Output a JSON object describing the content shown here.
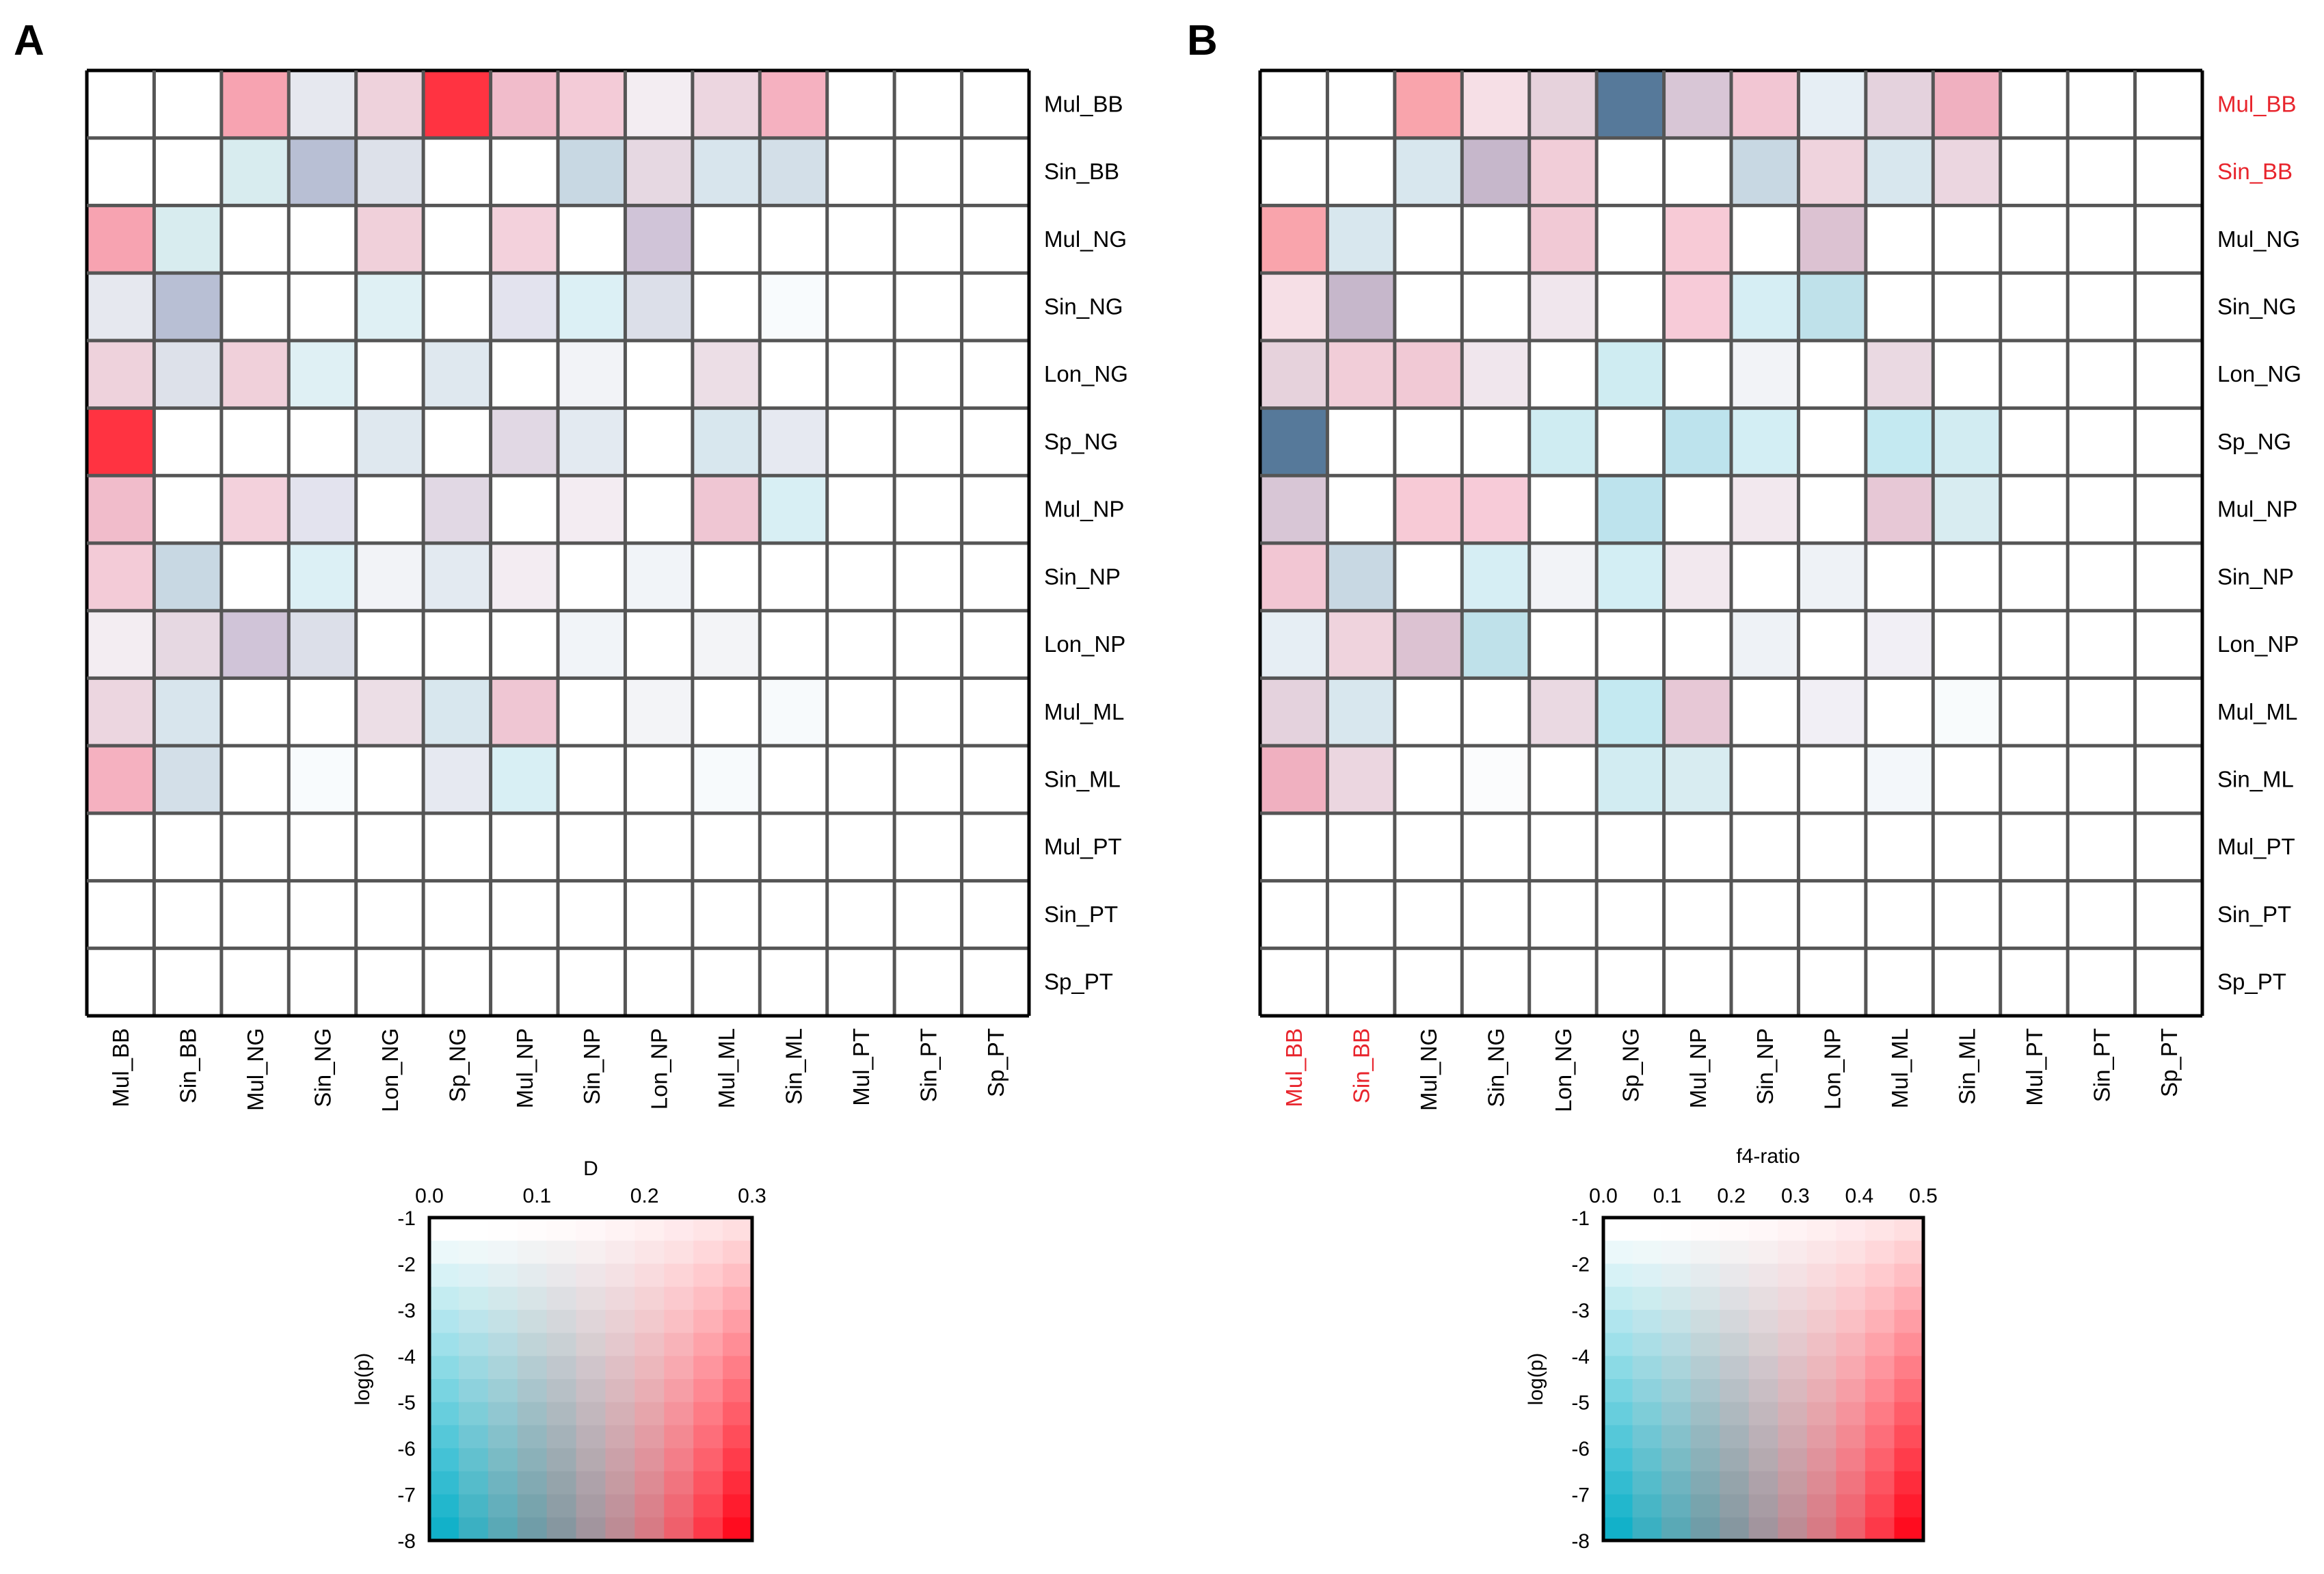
{
  "chart_data": [
    {
      "type": "heatmap",
      "panel_label": "A",
      "row_labels": [
        "Mul_BB",
        "Sin_BB",
        "Mul_NG",
        "Sin_NG",
        "Lon_NG",
        "Sp_NG",
        "Mul_NP",
        "Sin_NP",
        "Lon_NP",
        "Mul_ML",
        "Sin_ML",
        "Mul_PT",
        "Sin_PT",
        "Sp_PT"
      ],
      "col_labels": [
        "Mul_BB",
        "Sin_BB",
        "Mul_NG",
        "Sin_NG",
        "Lon_NG",
        "Sp_NG",
        "Mul_NP",
        "Sin_NP",
        "Lon_NP",
        "Mul_ML",
        "Sin_ML",
        "Mul_PT",
        "Sin_PT",
        "Sp_PT"
      ],
      "highlighted_labels": [],
      "cell_colors": [
        [
          "#ffffff",
          "#ffffff",
          "#f7a3b1",
          "#e6e8ef",
          "#eed2dc",
          "#ff3341",
          "#f1bccb",
          "#f3cbd7",
          "#f3edf2",
          "#ecd6e0",
          "#f5b1c0",
          "#ffffff",
          "#ffffff",
          "#ffffff"
        ],
        [
          "#ffffff",
          "#ffffff",
          "#d8ecef",
          "#b8bfd4",
          "#dde1ea",
          "#ffffff",
          "#ffffff",
          "#c8d8e3",
          "#e6d8e2",
          "#d8e5ed",
          "#d3dfe8",
          "#ffffff",
          "#ffffff",
          "#ffffff"
        ],
        [
          "#f7a3b1",
          "#d8ecef",
          "#ffffff",
          "#ffffff",
          "#f0d0da",
          "#ffffff",
          "#f3d1dc",
          "#ffffff",
          "#d0c4d8",
          "#ffffff",
          "#ffffff",
          "#ffffff",
          "#ffffff",
          "#ffffff"
        ],
        [
          "#e6e8ef",
          "#b8bfd4",
          "#ffffff",
          "#ffffff",
          "#dff0f4",
          "#ffffff",
          "#e3e3ee",
          "#dcf0f5",
          "#dcdfe9",
          "#ffffff",
          "#f8fbfd",
          "#ffffff",
          "#ffffff",
          "#ffffff"
        ],
        [
          "#eed2dc",
          "#dde1ea",
          "#f0d0da",
          "#dff0f4",
          "#ffffff",
          "#dfe8ef",
          "#ffffff",
          "#f2f3f7",
          "#ffffff",
          "#ecdee6",
          "#ffffff",
          "#ffffff",
          "#ffffff",
          "#ffffff"
        ],
        [
          "#ff3341",
          "#ffffff",
          "#ffffff",
          "#ffffff",
          "#dfe8ef",
          "#ffffff",
          "#e1d8e4",
          "#e3eaf1",
          "#ffffff",
          "#d8e7ee",
          "#e6e9f1",
          "#ffffff",
          "#ffffff",
          "#ffffff"
        ],
        [
          "#f1bccb",
          "#ffffff",
          "#f3d1dc",
          "#e3e3ee",
          "#ffffff",
          "#e1d8e4",
          "#ffffff",
          "#f3ecf2",
          "#ffffff",
          "#efc6d3",
          "#d8eff4",
          "#ffffff",
          "#ffffff",
          "#ffffff"
        ],
        [
          "#f3cbd7",
          "#c8d8e3",
          "#ffffff",
          "#dcf0f5",
          "#f2f3f7",
          "#e3eaf1",
          "#f3ecf2",
          "#ffffff",
          "#f1f4f8",
          "#ffffff",
          "#ffffff",
          "#ffffff",
          "#ffffff",
          "#ffffff"
        ],
        [
          "#f3edf2",
          "#e6d8e2",
          "#d0c4d8",
          "#dcdfe9",
          "#ffffff",
          "#ffffff",
          "#ffffff",
          "#f1f4f8",
          "#ffffff",
          "#f3f4f7",
          "#ffffff",
          "#ffffff",
          "#ffffff",
          "#ffffff"
        ],
        [
          "#ecd6e0",
          "#d8e5ed",
          "#ffffff",
          "#ffffff",
          "#ecdee6",
          "#d8e7ee",
          "#efc6d3",
          "#ffffff",
          "#f3f4f7",
          "#ffffff",
          "#f7fafc",
          "#ffffff",
          "#ffffff",
          "#ffffff"
        ],
        [
          "#f5b1c0",
          "#d3dfe8",
          "#ffffff",
          "#f8fbfd",
          "#ffffff",
          "#e6e9f1",
          "#d8eff4",
          "#ffffff",
          "#ffffff",
          "#f7fafc",
          "#ffffff",
          "#ffffff",
          "#ffffff",
          "#ffffff"
        ],
        [
          "#ffffff",
          "#ffffff",
          "#ffffff",
          "#ffffff",
          "#ffffff",
          "#ffffff",
          "#ffffff",
          "#ffffff",
          "#ffffff",
          "#ffffff",
          "#ffffff",
          "#ffffff",
          "#ffffff",
          "#ffffff"
        ],
        [
          "#ffffff",
          "#ffffff",
          "#ffffff",
          "#ffffff",
          "#ffffff",
          "#ffffff",
          "#ffffff",
          "#ffffff",
          "#ffffff",
          "#ffffff",
          "#ffffff",
          "#ffffff",
          "#ffffff",
          "#ffffff"
        ],
        [
          "#ffffff",
          "#ffffff",
          "#ffffff",
          "#ffffff",
          "#ffffff",
          "#ffffff",
          "#ffffff",
          "#ffffff",
          "#ffffff",
          "#ffffff",
          "#ffffff",
          "#ffffff",
          "#ffffff",
          "#ffffff"
        ]
      ],
      "legend": {
        "title": "D",
        "x_label": "D",
        "x_ticks": [
          "0.0",
          "0.1",
          "0.2",
          "0.3"
        ],
        "x_range": [
          0,
          0.3
        ],
        "y_label": "log(p)",
        "y_ticks": [
          "-1",
          "-2",
          "-3",
          "-4",
          "-5",
          "-6",
          "-7",
          "-8"
        ],
        "y_range": [
          -1,
          -8
        ]
      }
    },
    {
      "type": "heatmap",
      "panel_label": "B",
      "row_labels": [
        "Mul_BB",
        "Sin_BB",
        "Mul_NG",
        "Sin_NG",
        "Lon_NG",
        "Sp_NG",
        "Mul_NP",
        "Sin_NP",
        "Lon_NP",
        "Mul_ML",
        "Sin_ML",
        "Mul_PT",
        "Sin_PT",
        "Sp_PT"
      ],
      "col_labels": [
        "Mul_BB",
        "Sin_BB",
        "Mul_NG",
        "Sin_NG",
        "Lon_NG",
        "Sp_NG",
        "Mul_NP",
        "Sin_NP",
        "Lon_NP",
        "Mul_ML",
        "Sin_ML",
        "Mul_PT",
        "Sin_PT",
        "Sp_PT"
      ],
      "highlighted_labels": [
        "Mul_BB",
        "Sin_BB"
      ],
      "cell_colors": [
        [
          "#ffffff",
          "#ffffff",
          "#f9a4ac",
          "#f6dfe6",
          "#e6d2dc",
          "#56799a",
          "#d8c6d6",
          "#f2c6d3",
          "#e6eef4",
          "#e4d2dd",
          "#f0b0c0",
          "#ffffff",
          "#ffffff",
          "#ffffff"
        ],
        [
          "#ffffff",
          "#ffffff",
          "#d8e7ee",
          "#c6b7cb",
          "#f1cdd8",
          "#ffffff",
          "#ffffff",
          "#c8d8e3",
          "#efd3dd",
          "#d8e7ee",
          "#ebd6e0",
          "#ffffff",
          "#ffffff",
          "#ffffff"
        ],
        [
          "#f9a4ac",
          "#d8e7ee",
          "#ffffff",
          "#ffffff",
          "#f1c9d5",
          "#ffffff",
          "#f7cad6",
          "#ffffff",
          "#dcc2d2",
          "#ffffff",
          "#ffffff",
          "#ffffff",
          "#ffffff",
          "#ffffff"
        ],
        [
          "#f6dfe6",
          "#c6b7cb",
          "#ffffff",
          "#ffffff",
          "#f0e6ed",
          "#ffffff",
          "#f7cbd8",
          "#d6eef4",
          "#bfe1ea",
          "#ffffff",
          "#ffffff",
          "#ffffff",
          "#ffffff",
          "#ffffff"
        ],
        [
          "#e6d2dc",
          "#f1cdd8",
          "#f1c9d5",
          "#f0e6ed",
          "#ffffff",
          "#cfecf2",
          "#ffffff",
          "#f2f3f7",
          "#ffffff",
          "#ead9e2",
          "#ffffff",
          "#ffffff",
          "#ffffff",
          "#ffffff"
        ],
        [
          "#56799a",
          "#ffffff",
          "#ffffff",
          "#ffffff",
          "#cfecf2",
          "#ffffff",
          "#bde3ed",
          "#d3eef4",
          "#ffffff",
          "#c4e9f1",
          "#d2ecf2",
          "#ffffff",
          "#ffffff",
          "#ffffff"
        ],
        [
          "#d8c6d6",
          "#ffffff",
          "#f7cad6",
          "#f7cbd8",
          "#ffffff",
          "#bde3ed",
          "#ffffff",
          "#f2e8ee",
          "#ffffff",
          "#e7c8d6",
          "#d8ecf1",
          "#ffffff",
          "#ffffff",
          "#ffffff"
        ],
        [
          "#f2c6d3",
          "#c8d8e3",
          "#ffffff",
          "#d6eef4",
          "#f2f3f7",
          "#d3eef4",
          "#f2e8ee",
          "#ffffff",
          "#eef2f6",
          "#ffffff",
          "#ffffff",
          "#ffffff",
          "#ffffff",
          "#ffffff"
        ],
        [
          "#e6eef4",
          "#efd3dd",
          "#dcc2d2",
          "#bfe1ea",
          "#ffffff",
          "#ffffff",
          "#ffffff",
          "#eef2f6",
          "#ffffff",
          "#f1eff5",
          "#ffffff",
          "#ffffff",
          "#ffffff",
          "#ffffff"
        ],
        [
          "#e4d2dd",
          "#d8e7ee",
          "#ffffff",
          "#ffffff",
          "#ead9e2",
          "#c4e9f1",
          "#e7c8d6",
          "#ffffff",
          "#f1eff5",
          "#ffffff",
          "#f8fbfc",
          "#ffffff",
          "#ffffff",
          "#ffffff"
        ],
        [
          "#f0b0c0",
          "#ebd6e0",
          "#ffffff",
          "#fbfcfd",
          "#ffffff",
          "#d2ecf2",
          "#d8ecf1",
          "#ffffff",
          "#ffffff",
          "#f3f7fa",
          "#ffffff",
          "#ffffff",
          "#ffffff",
          "#ffffff"
        ],
        [
          "#ffffff",
          "#ffffff",
          "#ffffff",
          "#ffffff",
          "#ffffff",
          "#ffffff",
          "#ffffff",
          "#ffffff",
          "#ffffff",
          "#ffffff",
          "#ffffff",
          "#ffffff",
          "#ffffff",
          "#ffffff"
        ],
        [
          "#ffffff",
          "#ffffff",
          "#ffffff",
          "#ffffff",
          "#ffffff",
          "#ffffff",
          "#ffffff",
          "#ffffff",
          "#ffffff",
          "#ffffff",
          "#ffffff",
          "#ffffff",
          "#ffffff",
          "#ffffff"
        ],
        [
          "#ffffff",
          "#ffffff",
          "#ffffff",
          "#ffffff",
          "#ffffff",
          "#ffffff",
          "#ffffff",
          "#ffffff",
          "#ffffff",
          "#ffffff",
          "#ffffff",
          "#ffffff",
          "#ffffff",
          "#ffffff"
        ]
      ],
      "legend": {
        "title": "f4-ratio",
        "x_label": "f4-ratio",
        "x_ticks": [
          "0.0",
          "0.1",
          "0.2",
          "0.3",
          "0.4",
          "0.5"
        ],
        "x_range": [
          0,
          0.5
        ],
        "y_label": "log(p)",
        "y_ticks": [
          "-1",
          "-2",
          "-3",
          "-4",
          "-5",
          "-6",
          "-7",
          "-8"
        ],
        "y_range": [
          -1,
          -8
        ]
      }
    }
  ],
  "colors": {
    "positive": "#ff2233",
    "negative": "#00bcd8",
    "neutral": "#ffffff",
    "grid": "#555555",
    "highlight_label": "#e8242c"
  }
}
